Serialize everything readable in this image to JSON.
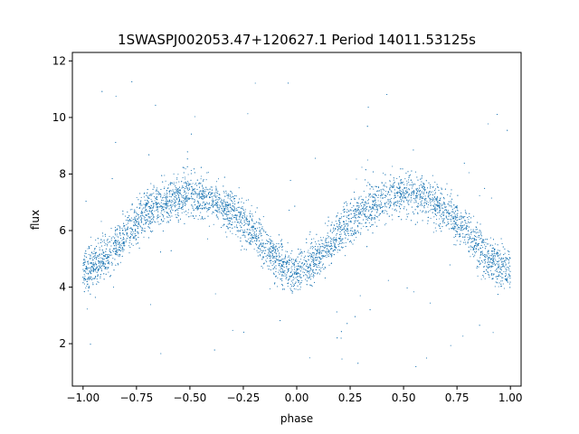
{
  "chart_data": {
    "type": "scatter",
    "title": "1SWASPJ002053.47+120627.1 Period 14011.53125s",
    "xlabel": "phase",
    "ylabel": "flux",
    "xlim": [
      -1.05,
      1.05
    ],
    "ylim": [
      0.5,
      12.3
    ],
    "xticks": [
      -1.0,
      -0.75,
      -0.5,
      -0.25,
      0.0,
      0.25,
      0.5,
      0.75,
      1.0
    ],
    "xtick_labels": [
      "−1.00",
      "−0.75",
      "−0.50",
      "−0.25",
      "0.00",
      "0.25",
      "0.50",
      "0.75",
      "1.00"
    ],
    "yticks": [
      2,
      4,
      6,
      8,
      10,
      12
    ],
    "ytick_labels": [
      "2",
      "4",
      "6",
      "8",
      "10",
      "12"
    ],
    "grid": false,
    "marker_color": "#1f77b4",
    "series": [
      {
        "phase": [
          -1.0,
          -0.9,
          -0.8,
          -0.7,
          -0.6,
          -0.5,
          -0.4,
          -0.3,
          -0.2,
          -0.1,
          0.0,
          0.1,
          0.2,
          0.3,
          0.4,
          0.5,
          0.6,
          0.7,
          0.8,
          0.9,
          1.0
        ],
        "flux": [
          4.5,
          5.0,
          5.9,
          6.7,
          7.1,
          7.3,
          7.1,
          6.7,
          5.9,
          5.0,
          4.4,
          5.0,
          5.9,
          6.7,
          7.1,
          7.3,
          7.1,
          6.7,
          5.9,
          5.0,
          4.5
        ]
      }
    ]
  }
}
